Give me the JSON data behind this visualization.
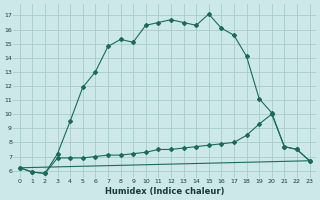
{
  "xlabel": "Humidex (Indice chaleur)",
  "ylabel": "",
  "bg_color": "#cce8e8",
  "grid_color": "#aacccc",
  "line_color": "#1a6b5a",
  "xlim": [
    -0.5,
    23.5
  ],
  "ylim": [
    5.5,
    17.8
  ],
  "xticks": [
    0,
    1,
    2,
    3,
    4,
    5,
    6,
    7,
    8,
    9,
    10,
    11,
    12,
    13,
    14,
    15,
    16,
    17,
    18,
    19,
    20,
    21,
    22,
    23
  ],
  "yticks": [
    6,
    7,
    8,
    9,
    10,
    11,
    12,
    13,
    14,
    15,
    16,
    17
  ],
  "curve1_x": [
    0,
    1,
    2,
    3,
    4,
    5,
    6,
    7,
    8,
    9,
    10,
    11,
    12,
    13,
    14,
    15,
    16,
    17,
    18,
    19,
    20,
    21,
    22,
    23
  ],
  "curve1_y": [
    6.2,
    5.9,
    5.8,
    7.2,
    9.5,
    11.9,
    13.0,
    14.8,
    15.3,
    15.1,
    16.3,
    16.5,
    16.7,
    16.5,
    16.3,
    17.1,
    16.1,
    15.6,
    14.1,
    11.1,
    10.1,
    7.7,
    7.5,
    6.7
  ],
  "curve2_x": [
    0,
    1,
    2,
    3,
    4,
    5,
    6,
    7,
    8,
    9,
    10,
    11,
    12,
    13,
    14,
    15,
    16,
    17,
    18,
    19,
    20,
    21,
    22,
    23
  ],
  "curve2_y": [
    6.2,
    5.9,
    5.8,
    6.9,
    6.9,
    6.9,
    7.0,
    7.1,
    7.1,
    7.2,
    7.3,
    7.5,
    7.5,
    7.6,
    7.7,
    7.8,
    7.9,
    8.0,
    8.5,
    9.3,
    10.0,
    7.7,
    7.5,
    6.7
  ],
  "curve3_x": [
    0,
    23
  ],
  "curve3_y": [
    6.2,
    6.7
  ],
  "marker_size": 2.0,
  "line_width": 0.8,
  "font_size_ticks": 4.5,
  "font_size_xlabel": 6.0
}
